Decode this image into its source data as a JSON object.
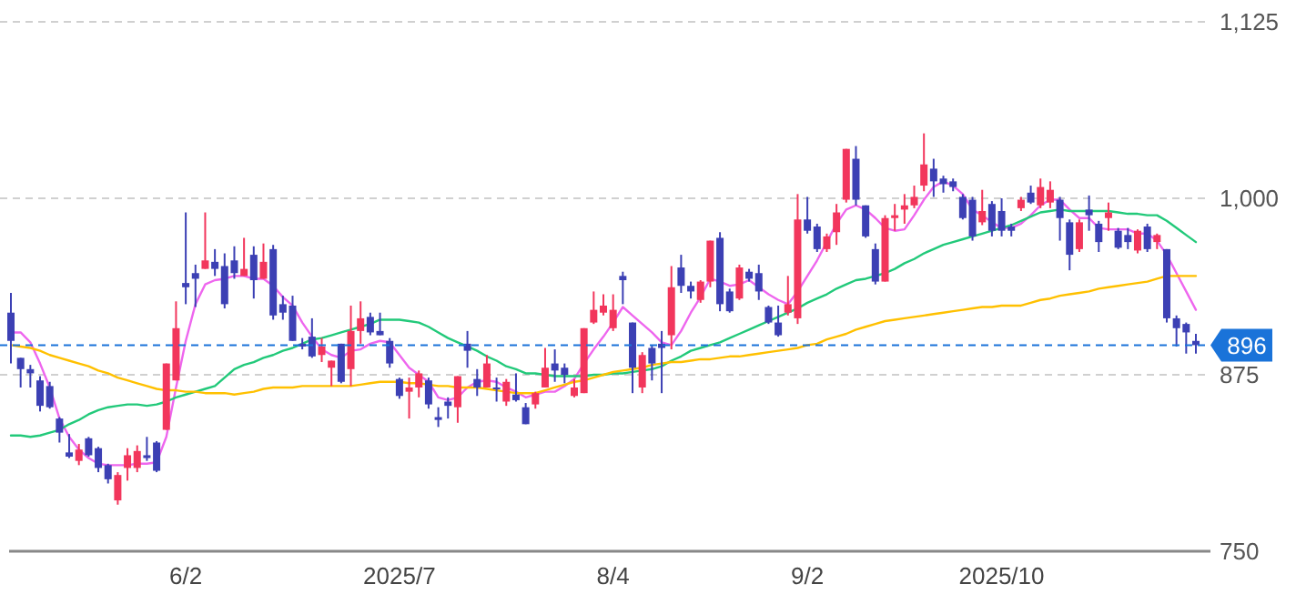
{
  "chart_data": {
    "type": "candlestick",
    "categories": [
      null,
      null,
      null,
      null,
      null,
      null,
      null,
      null,
      null,
      null,
      null,
      null,
      null,
      null,
      null,
      null,
      null,
      null,
      "6/2",
      null,
      null,
      null,
      null,
      null,
      null,
      null,
      null,
      null,
      null,
      null,
      null,
      null,
      null,
      null,
      null,
      null,
      null,
      null,
      null,
      null,
      "2025/7",
      null,
      null,
      null,
      null,
      null,
      null,
      null,
      null,
      null,
      null,
      null,
      null,
      null,
      null,
      null,
      null,
      null,
      null,
      null,
      null,
      null,
      "8/4",
      null,
      null,
      null,
      null,
      null,
      null,
      null,
      null,
      null,
      null,
      null,
      null,
      null,
      null,
      null,
      null,
      null,
      null,
      null,
      "9/2",
      null,
      null,
      null,
      null,
      null,
      null,
      null,
      null,
      null,
      null,
      null,
      null,
      null,
      null,
      null,
      null,
      null,
      null,
      null,
      "2025/10",
      null,
      null,
      null,
      null,
      null,
      null,
      null,
      null,
      null,
      null,
      null,
      null,
      null,
      null,
      null,
      null,
      null,
      null,
      null,
      null
    ],
    "ohlc": [
      [
        919,
        933,
        883,
        899
      ],
      [
        887,
        887,
        866,
        879
      ],
      [
        879,
        882,
        866,
        876
      ],
      [
        871,
        874,
        849,
        853
      ],
      [
        867,
        870,
        851,
        852
      ],
      [
        844,
        845,
        827,
        834
      ],
      [
        820,
        833,
        816,
        817
      ],
      [
        814,
        826,
        811,
        822
      ],
      [
        830,
        831,
        817,
        818
      ],
      [
        823,
        824,
        806,
        809
      ],
      [
        811,
        812,
        798,
        801
      ],
      [
        786,
        806,
        783,
        804
      ],
      [
        809,
        823,
        800,
        818
      ],
      [
        809,
        825,
        806,
        821
      ],
      [
        818,
        831,
        814,
        816
      ],
      [
        827,
        828,
        806,
        807
      ],
      [
        836,
        883,
        836,
        883
      ],
      [
        871,
        927,
        871,
        908
      ],
      [
        940,
        990,
        925,
        937
      ],
      [
        947,
        953,
        923,
        943
      ],
      [
        950,
        990,
        950,
        956
      ],
      [
        955,
        964,
        945,
        950
      ],
      [
        952,
        961,
        922,
        925
      ],
      [
        956,
        966,
        943,
        947
      ],
      [
        945,
        972,
        945,
        950
      ],
      [
        960,
        966,
        929,
        942
      ],
      [
        943,
        968,
        943,
        955
      ],
      [
        964,
        967,
        914,
        917
      ],
      [
        925,
        931,
        914,
        919
      ],
      [
        924,
        931,
        899,
        899
      ],
      [
        897,
        901,
        893,
        895
      ],
      [
        902,
        915,
        887,
        888
      ],
      [
        889,
        901,
        884,
        895
      ],
      [
        880,
        885,
        867,
        885
      ],
      [
        897,
        897,
        869,
        870
      ],
      [
        879,
        924,
        867,
        906
      ],
      [
        906,
        927,
        897,
        915
      ],
      [
        916,
        919,
        903,
        905
      ],
      [
        906,
        919,
        903,
        903
      ],
      [
        899,
        901,
        880,
        883
      ],
      [
        872,
        873,
        858,
        860
      ],
      [
        863,
        873,
        844,
        866
      ],
      [
        866,
        878,
        859,
        876
      ],
      [
        871,
        873,
        851,
        854
      ],
      [
        845,
        852,
        838,
        843
      ],
      [
        856,
        859,
        844,
        853
      ],
      [
        852,
        874,
        841,
        874
      ],
      [
        897,
        906,
        880,
        892
      ],
      [
        872,
        879,
        860,
        866
      ],
      [
        866,
        889,
        866,
        883
      ],
      [
        866,
        873,
        856,
        865
      ],
      [
        856,
        872,
        853,
        870
      ],
      [
        861,
        876,
        856,
        857
      ],
      [
        852,
        855,
        840,
        840
      ],
      [
        854,
        863,
        851,
        862
      ],
      [
        866,
        894,
        866,
        880
      ],
      [
        883,
        893,
        870,
        878
      ],
      [
        880,
        883,
        869,
        875
      ],
      [
        860,
        872,
        859,
        866
      ],
      [
        862,
        908,
        862,
        908
      ],
      [
        912,
        934,
        911,
        921
      ],
      [
        919,
        932,
        917,
        924
      ],
      [
        908,
        932,
        906,
        921
      ],
      [
        945,
        948,
        925,
        942
      ],
      [
        912,
        912,
        862,
        880
      ],
      [
        866,
        891,
        862,
        889
      ],
      [
        894,
        896,
        871,
        883
      ],
      [
        897,
        906,
        862,
        894
      ],
      [
        903,
        952,
        893,
        937
      ],
      [
        951,
        960,
        933,
        938
      ],
      [
        938,
        941,
        929,
        934
      ],
      [
        928,
        942,
        926,
        941
      ],
      [
        941,
        970,
        937,
        970
      ],
      [
        972,
        976,
        920,
        925
      ],
      [
        934,
        936,
        919,
        920
      ],
      [
        929,
        953,
        928,
        951
      ],
      [
        948,
        950,
        941,
        943
      ],
      [
        947,
        953,
        928,
        934
      ],
      [
        923,
        924,
        911,
        912
      ],
      [
        912,
        924,
        902,
        903
      ],
      [
        919,
        945,
        917,
        925
      ],
      [
        915,
        1003,
        911,
        985
      ],
      [
        985,
        1001,
        975,
        977
      ],
      [
        980,
        982,
        962,
        964
      ],
      [
        964,
        975,
        962,
        973
      ],
      [
        976,
        996,
        967,
        990
      ],
      [
        999,
        1035,
        997,
        1035
      ],
      [
        1028,
        1037,
        995,
        999
      ],
      [
        995,
        995,
        972,
        973
      ],
      [
        964,
        968,
        939,
        941
      ],
      [
        941,
        988,
        941,
        986
      ],
      [
        986,
        996,
        977,
        988
      ],
      [
        992,
        1003,
        982,
        995
      ],
      [
        995,
        1009,
        993,
        1001
      ],
      [
        1009,
        1046,
        1005,
        1024
      ],
      [
        1021,
        1028,
        1001,
        1012
      ],
      [
        1014,
        1016,
        1004,
        1010
      ],
      [
        1012,
        1014,
        1005,
        1008
      ],
      [
        1001,
        1003,
        985,
        986
      ],
      [
        999,
        1001,
        970,
        973
      ],
      [
        983,
        1006,
        981,
        991
      ],
      [
        996,
        998,
        973,
        977
      ],
      [
        991,
        1000,
        973,
        977
      ],
      [
        980,
        982,
        973,
        977
      ],
      [
        993,
        1001,
        991,
        999
      ],
      [
        1004,
        1009,
        996,
        997
      ],
      [
        995,
        1014,
        993,
        1008
      ],
      [
        997,
        1012,
        993,
        1006
      ],
      [
        999,
        1001,
        970,
        986
      ],
      [
        983,
        985,
        949,
        960
      ],
      [
        964,
        985,
        962,
        983
      ],
      [
        992,
        1002,
        977,
        988
      ],
      [
        982,
        984,
        962,
        969
      ],
      [
        986,
        997,
        977,
        990
      ],
      [
        977,
        979,
        964,
        965
      ],
      [
        974,
        979,
        964,
        969
      ],
      [
        963,
        978,
        961,
        977
      ],
      [
        980,
        982,
        962,
        964
      ],
      [
        969,
        975,
        964,
        974
      ],
      [
        964,
        964,
        912,
        915
      ],
      [
        915,
        917,
        895,
        908
      ],
      [
        911,
        912,
        890,
        905
      ],
      [
        899,
        904,
        890,
        896
      ]
    ],
    "colors": [
      "#3c40b4",
      "#3c40b4",
      "#3c40b4",
      "#3c40b4",
      "#3c40b4",
      "#3c40b4",
      "#3c40b4",
      "#f2365c",
      "#3c40b4",
      "#3c40b4",
      "#3c40b4",
      "#f2365c",
      "#f2365c",
      "#f2365c",
      "#3c40b4",
      "#3c40b4",
      "#f2365c",
      "#f2365c",
      "#3c40b4",
      "#3c40b4",
      "#f2365c",
      "#3c40b4",
      "#3c40b4",
      "#3c40b4",
      "#f2365c",
      "#3c40b4",
      "#f2365c",
      "#3c40b4",
      "#3c40b4",
      "#3c40b4",
      "#3c40b4",
      "#3c40b4",
      "#f2365c",
      "#f2365c",
      "#3c40b4",
      "#f2365c",
      "#f2365c",
      "#3c40b4",
      "#3c40b4",
      "#3c40b4",
      "#3c40b4",
      "#f2365c",
      "#f2365c",
      "#3c40b4",
      "#3c40b4",
      "#3c40b4",
      "#f2365c",
      "#3c40b4",
      "#3c40b4",
      "#f2365c",
      "#3c40b4",
      "#f2365c",
      "#3c40b4",
      "#3c40b4",
      "#f2365c",
      "#f2365c",
      "#3c40b4",
      "#3c40b4",
      "#f2365c",
      "#f2365c",
      "#f2365c",
      "#f2365c",
      "#f2365c",
      "#3c40b4",
      "#3c40b4",
      "#f2365c",
      "#3c40b4",
      "#3c40b4",
      "#f2365c",
      "#3c40b4",
      "#3c40b4",
      "#f2365c",
      "#f2365c",
      "#3c40b4",
      "#3c40b4",
      "#f2365c",
      "#3c40b4",
      "#3c40b4",
      "#3c40b4",
      "#3c40b4",
      "#f2365c",
      "#f2365c",
      "#3c40b4",
      "#3c40b4",
      "#f2365c",
      "#f2365c",
      "#f2365c",
      "#3c40b4",
      "#3c40b4",
      "#3c40b4",
      "#f2365c",
      "#f2365c",
      "#f2365c",
      "#f2365c",
      "#f2365c",
      "#3c40b4",
      "#3c40b4",
      "#3c40b4",
      "#3c40b4",
      "#3c40b4",
      "#f2365c",
      "#3c40b4",
      "#3c40b4",
      "#3c40b4",
      "#f2365c",
      "#3c40b4",
      "#f2365c",
      "#f2365c",
      "#3c40b4",
      "#3c40b4",
      "#f2365c",
      "#3c40b4",
      "#3c40b4",
      "#f2365c",
      "#3c40b4",
      "#3c40b4",
      "#f2365c",
      "#3c40b4",
      "#f2365c",
      "#3c40b4",
      "#3c40b4",
      "#3c40b4",
      "#3c40b4"
    ],
    "series": [
      {
        "type": "line",
        "color": "#ee66ee",
        "values": [
          905,
          905,
          898,
          883,
          866,
          844,
          831,
          822,
          816,
          812,
          811,
          811,
          811,
          812,
          812,
          813,
          831,
          866,
          899,
          925,
          939,
          942,
          943,
          945,
          945,
          943,
          943,
          938,
          930,
          924,
          912,
          902,
          893,
          889,
          887,
          892,
          893,
          897,
          899,
          898,
          889,
          880,
          875,
          870,
          859,
          857,
          859,
          866,
          870,
          871,
          870,
          866,
          863,
          859,
          861,
          863,
          863,
          867,
          872,
          883,
          893,
          902,
          912,
          923,
          917,
          911,
          905,
          898,
          896,
          906,
          919,
          930,
          943,
          941,
          938,
          939,
          942,
          937,
          932,
          928,
          925,
          934,
          945,
          956,
          969,
          982,
          992,
          995,
          992,
          986,
          979,
          977,
          978,
          988,
          999,
          1008,
          1012,
          1009,
          1003,
          992,
          988,
          983,
          979,
          979,
          982,
          988,
          995,
          999,
          999,
          992,
          986,
          986,
          979,
          978,
          978,
          978,
          975,
          975,
          970,
          960,
          947,
          934,
          921
        ]
      },
      {
        "type": "line",
        "color": "#22c97a",
        "values": [
          832,
          832,
          831,
          832,
          834,
          836,
          840,
          843,
          847,
          850,
          852,
          853,
          854,
          854,
          853,
          854,
          856,
          859,
          861,
          863,
          865,
          867,
          873,
          879,
          882,
          884,
          887,
          889,
          892,
          894,
          897,
          900,
          901,
          903,
          905,
          907,
          909,
          911,
          914,
          914,
          914,
          913,
          912,
          909,
          905,
          901,
          898,
          895,
          892,
          888,
          885,
          881,
          879,
          876,
          876,
          875,
          874,
          874,
          874,
          874,
          875,
          875,
          876,
          876,
          877,
          878,
          879,
          881,
          885,
          888,
          892,
          894,
          896,
          898,
          901,
          904,
          907,
          910,
          913,
          916,
          919,
          922,
          926,
          929,
          932,
          936,
          939,
          942,
          943,
          945,
          947,
          950,
          954,
          957,
          961,
          964,
          967,
          969,
          971,
          973,
          975,
          977,
          979,
          981,
          984,
          987,
          990,
          991,
          992,
          991,
          991,
          991,
          991,
          991,
          990,
          989,
          989,
          988,
          988,
          984,
          979,
          974,
          969
        ]
      },
      {
        "type": "line",
        "color": "#ffc000",
        "values": [
          896,
          895,
          894,
          892,
          889,
          887,
          885,
          883,
          881,
          878,
          876,
          873,
          871,
          869,
          867,
          865,
          864,
          864,
          863,
          863,
          862,
          862,
          862,
          861,
          862,
          863,
          865,
          866,
          866,
          866,
          867,
          867,
          867,
          867,
          867,
          867,
          868,
          869,
          870,
          870,
          870,
          869,
          869,
          868,
          867,
          867,
          866,
          866,
          866,
          865,
          864,
          863,
          862,
          862,
          862,
          864,
          866,
          868,
          870,
          871,
          873,
          875,
          877,
          878,
          879,
          880,
          882,
          883,
          884,
          884,
          885,
          886,
          886,
          887,
          888,
          888,
          889,
          890,
          891,
          892,
          893,
          894,
          896,
          897,
          900,
          902,
          904,
          907,
          909,
          911,
          913,
          914,
          915,
          916,
          917,
          918,
          919,
          920,
          921,
          922,
          923,
          923,
          924,
          924,
          924,
          926,
          928,
          929,
          931,
          932,
          933,
          934,
          936,
          937,
          938,
          939,
          940,
          941,
          943,
          945,
          945,
          945,
          945
        ]
      }
    ],
    "ylim": [
      750,
      1125
    ],
    "yticks": [
      {
        "value": 750,
        "label": "750"
      },
      {
        "value": 875,
        "label": "875"
      },
      {
        "value": 1000,
        "label": "1,000"
      },
      {
        "value": 1125,
        "label": "1,125"
      }
    ],
    "grid": "y",
    "ref_lines": [
      {
        "axis": "y",
        "value": 896,
        "label": "896",
        "color": "#1a73d9",
        "line_style": "dashed"
      }
    ]
  }
}
